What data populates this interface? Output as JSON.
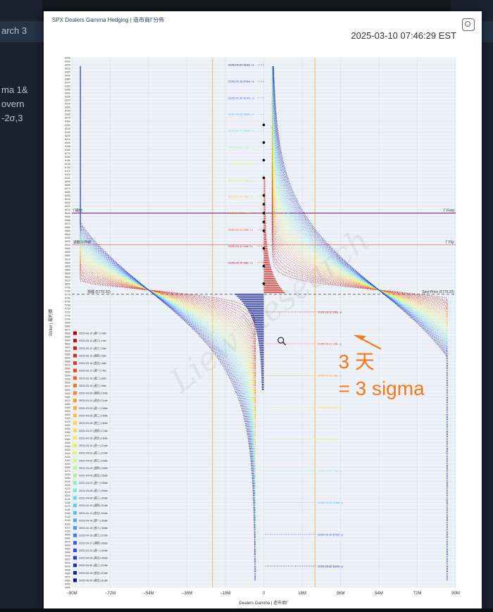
{
  "header": {
    "title": "SPX Dealers Gamma Hedging | 造市商Γ分佈",
    "timestamp": "2025-03-10 07:46:29 EST"
  },
  "colors": {
    "call": "#e0312b",
    "put": "#1f2a9c",
    "spot_line": "#555555",
    "gamma_field": "#7a2a7a",
    "gamma_flip": "#e07a7a",
    "annotation": "#f07a1a",
    "vertical_guides": "#f0b030"
  },
  "chart_data": {
    "type": "bar",
    "orientation": "horizontal",
    "xlabel": "Dealers Gamma | 造市商Γ",
    "ylabel": "Strike | 履約價",
    "x_ticks": [
      "−90M",
      "−72M",
      "−54M",
      "−36M",
      "−18M",
      "0",
      "18M",
      "36M",
      "54M",
      "72M",
      "90M"
    ],
    "xlim": [
      -90,
      90
    ],
    "ylim": [
      4940,
      6440
    ],
    "spot_price": 5770.2,
    "gamma_field_strike": 6000,
    "gamma_flip_strike": 5910,
    "reference_lines": [
      {
        "label": "Γ Field",
        "strike": 6000
      },
      {
        "label": "Γ Flip",
        "strike": 5910
      },
      {
        "label": "Spot Price (5770.20)",
        "strike": 5770.2
      }
    ],
    "left_labels": [
      {
        "label": "Γ場地",
        "strike": 6000
      },
      {
        "label": "波動分界線",
        "strike": 5910
      },
      {
        "label": "現價 (5770.20)",
        "strike": 5770.2
      }
    ],
    "expiry_labels_upper": [
      "2025-05-30 81dte +c",
      "2025-05-16 67dte +c",
      "2025-04-30 51dte +c",
      "2025-04-25 46dte +c",
      "2025-04-17 38dte +c",
      "2025-03-31 21dte +c",
      "2025-03-21 11dte +c",
      "2025-03-17 7dte +c",
      "2025-03-14 4dte +c",
      "2025-03-13 3dte +c",
      "2025-03-12 2dte +c",
      "2025-03-11 1dte +c",
      "2025-03-10 0dte +c"
    ],
    "expiry_labels_lower": [
      "2025-03-10 0dte -p",
      "2025-03-11 1dte -p",
      "2025-03-12 2dte -p",
      "2025-03-13 3dte -p",
      "2025-03-14 4dte -p",
      "2025-03-17 7dte -p",
      "2025-04-30 51dte -p",
      "2025-05-16 67dte -p",
      "2025-05-30 81dte -p"
    ],
    "legend": [
      "2025-03-10 (週一) 0dte",
      "2025-03-11 (週二) 1dte",
      "2025-03-12 (週三) 2dte",
      "2025-03-13 (週四) 3dte",
      "2025-03-14 (週五) 4dte",
      "2025-03-17 (週一) 7dte",
      "2025-03-18 (週二) 8dte",
      "2025-03-19 (週三) 9dte",
      "2025-03-20 (週四) 10dte",
      "2025-03-21 (週五) 11dte",
      "2025-03-24 (週一) 14dte",
      "2025-03-25 (週二) 15dte",
      "2025-03-26 (週三) 16dte",
      "2025-03-27 (週四) 17dte",
      "2025-03-28 (週五) 18dte",
      "2025-03-31 (週一) 21dte",
      "2025-04-01 (週二) 22dte",
      "2025-04-02 (週三) 23dte",
      "2025-04-03 (週四) 24dte",
      "2025-04-04 (週五) 25dte",
      "2025-04-07 (週一) 28dte",
      "2025-04-08 (週二) 29dte",
      "2025-04-09 (週三) 30dte",
      "2025-04-10 (週四) 31dte",
      "2025-04-11 (週五) 32dte",
      "2025-04-14 (週一) 35dte",
      "2025-04-15 (週二) 36dte",
      "2025-04-16 (週三) 37dte",
      "2025-04-17 (週四) 38dte",
      "2025-04-21 (週一) 42dte",
      "2025-04-25 (週五) 46dte",
      "2025-04-30 (週三) 51dte",
      "2025-05-16 (週五) 67dte",
      "2025-05-30 (週五) 81dte"
    ],
    "watermark": "Liew Research"
  },
  "annotation": {
    "line1": "3 天",
    "line2": "= 3 sigma"
  }
}
